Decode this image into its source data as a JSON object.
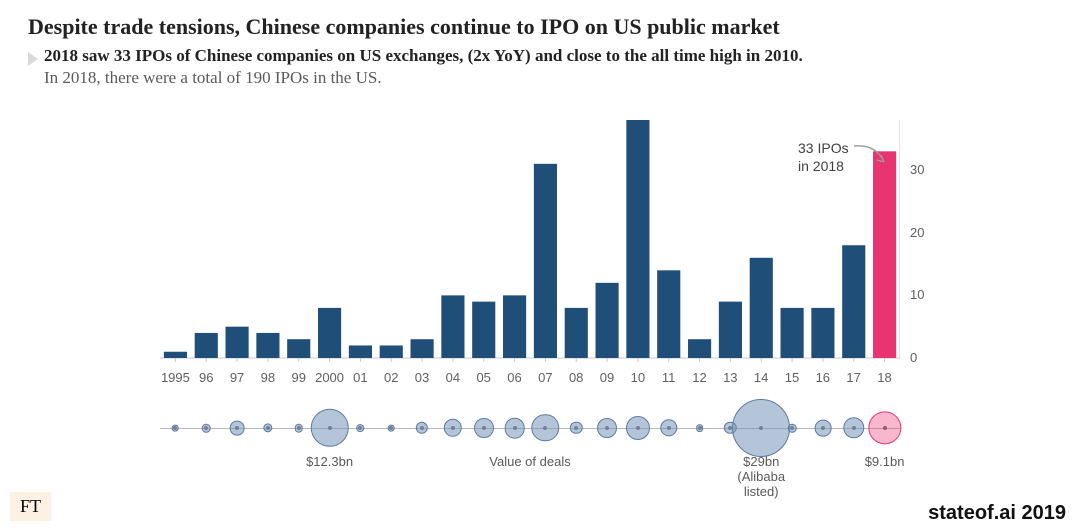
{
  "title": "Despite trade tensions, Chinese companies continue to IPO on US public market",
  "title_fontsize": 22,
  "subtitle_bold": "2018 saw 33 IPOs of Chinese companies on US exchanges, (2x YoY) and close to the all time high in 2010.",
  "subtitle_plain": "In 2018, there were a total of 190 IPOs in the US.",
  "subtitle_fontsize": 17,
  "chart": {
    "type": "bar",
    "years": [
      1995,
      1996,
      1997,
      1998,
      1999,
      2000,
      2001,
      2002,
      2003,
      2004,
      2005,
      2006,
      2007,
      2008,
      2009,
      2010,
      2011,
      2012,
      2013,
      2014,
      2015,
      2016,
      2017,
      2018
    ],
    "x_labels": [
      "1995",
      "96",
      "97",
      "98",
      "99",
      "2000",
      "01",
      "02",
      "03",
      "04",
      "05",
      "06",
      "07",
      "08",
      "09",
      "10",
      "11",
      "12",
      "13",
      "14",
      "15",
      "16",
      "17",
      "18"
    ],
    "values": [
      1,
      4,
      5,
      4,
      3,
      8,
      2,
      2,
      3,
      10,
      9,
      10,
      31,
      8,
      12,
      38,
      14,
      3,
      9,
      16,
      8,
      8,
      18,
      33
    ],
    "bar_color": "#1f4e79",
    "highlight_index": 23,
    "highlight_color": "#e83471",
    "ylim": [
      0,
      38
    ],
    "yticks": [
      0,
      10,
      20,
      30
    ],
    "axis_color": "#c9c9c9",
    "tick_label_color": "#606060",
    "tick_fontsize": 13,
    "bar_gap_ratio": 0.25
  },
  "annotation": {
    "text_line1": "33 IPOs",
    "text_line2": "in 2018",
    "arrow_color": "#9a9a9a"
  },
  "bubbles": {
    "axis_label": "Value of deals",
    "fill_color": "rgba(120,150,185,0.55)",
    "stroke_color": "#5c7ba3",
    "highlight_fill": "rgba(232,52,113,0.35)",
    "highlight_stroke": "#e83471",
    "max_radius_px": 28,
    "items": [
      {
        "year": 1995,
        "value": 0.2
      },
      {
        "year": 1996,
        "value": 0.4
      },
      {
        "year": 1997,
        "value": 1.5
      },
      {
        "year": 1998,
        "value": 0.5
      },
      {
        "year": 1999,
        "value": 0.4
      },
      {
        "year": 2000,
        "value": 12.3,
        "label": "$12.3bn"
      },
      {
        "year": 2001,
        "value": 0.3
      },
      {
        "year": 2002,
        "value": 0.2
      },
      {
        "year": 2003,
        "value": 1.0
      },
      {
        "year": 2004,
        "value": 2.5
      },
      {
        "year": 2005,
        "value": 3.0
      },
      {
        "year": 2006,
        "value": 3.2
      },
      {
        "year": 2007,
        "value": 6.0
      },
      {
        "year": 2008,
        "value": 1.0
      },
      {
        "year": 2009,
        "value": 3.0
      },
      {
        "year": 2010,
        "value": 4.5
      },
      {
        "year": 2011,
        "value": 2.2
      },
      {
        "year": 2012,
        "value": 0.3
      },
      {
        "year": 2013,
        "value": 1.0
      },
      {
        "year": 2014,
        "value": 29.0,
        "label": "$29bn\n(Alibaba\nlisted)"
      },
      {
        "year": 2015,
        "value": 0.4
      },
      {
        "year": 2016,
        "value": 2.0
      },
      {
        "year": 2017,
        "value": 3.5
      },
      {
        "year": 2018,
        "value": 9.1,
        "label": "$9.1bn",
        "highlight": true
      }
    ]
  },
  "footer": {
    "ft": "FT",
    "credit": "stateof.ai 2019"
  }
}
